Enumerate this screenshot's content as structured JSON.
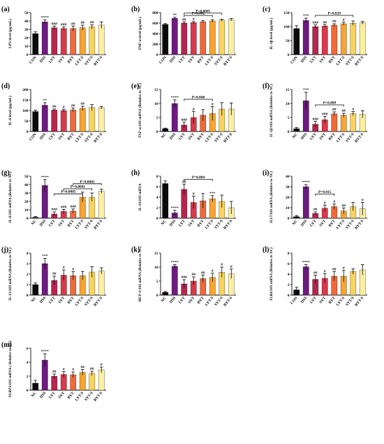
{
  "figure": {
    "palette": [
      "#0a0a0a",
      "#6d1a7e",
      "#b5264f",
      "#d9394c",
      "#ef6a3b",
      "#f6a532",
      "#f8d35e",
      "#fcefa0"
    ]
  },
  "chart_data": [
    {
      "id": "a",
      "type": "bar",
      "title": "(a)",
      "ylabel": "LPS level (pg/mL)",
      "categories": [
        "CON",
        "DSS",
        "LYT",
        "SYT",
        "BYT",
        "LYT-S",
        "SYT-S",
        "BYT-S"
      ],
      "values": [
        25,
        39,
        32,
        31,
        31,
        32,
        33,
        35
      ],
      "errors": [
        2,
        2.5,
        2,
        2,
        3,
        3,
        2.5,
        4
      ],
      "ylim": [
        0,
        50
      ],
      "yticks": [
        0,
        10,
        20,
        30,
        40,
        50
      ],
      "labels": [
        "",
        "****",
        "###",
        "###",
        "##",
        "##",
        "##",
        ""
      ],
      "brackets": []
    },
    {
      "id": "b",
      "type": "bar",
      "title": "(b)",
      "ylabel": "TNF-α level (pg/mL)",
      "categories": [
        "CON",
        "DSS",
        "LYT",
        "SYT",
        "BYT",
        "LYT-S",
        "SYT-S",
        "BYT-S"
      ],
      "values": [
        575,
        690,
        600,
        610,
        625,
        640,
        655,
        665
      ],
      "errors": [
        15,
        20,
        25,
        20,
        20,
        25,
        20,
        20
      ],
      "ylim": [
        0,
        800
      ],
      "yticks": [
        0,
        200,
        400,
        600,
        800
      ],
      "labels": [
        "",
        "**",
        "##",
        "#",
        "",
        "",
        "",
        ""
      ],
      "brackets": [
        {
          "from": 2,
          "to": 6,
          "level": 790,
          "text": "P=0.0005"
        },
        {
          "from": 2,
          "to": 5,
          "level": 745,
          "text": "P=0.002"
        }
      ]
    },
    {
      "id": "c",
      "type": "bar",
      "title": "(c)",
      "ylabel": "IL-1β level (pg/mL)",
      "categories": [
        "CON",
        "DSS",
        "LYT",
        "SYT",
        "BYT",
        "LYT-S",
        "SYT-S",
        "BYT-S"
      ],
      "values": [
        93,
        122,
        100,
        102,
        105,
        110,
        112,
        113
      ],
      "errors": [
        10,
        8,
        6,
        5,
        5,
        6,
        8,
        5
      ],
      "ylim": [
        0,
        150
      ],
      "yticks": [
        0,
        50,
        100,
        150
      ],
      "labels": [
        "",
        "***",
        "###",
        "##",
        "##",
        "#",
        "",
        ""
      ],
      "brackets": [
        {
          "from": 2,
          "to": 6,
          "level": 140,
          "text": "P=0.029"
        }
      ]
    },
    {
      "id": "d",
      "type": "bar",
      "title": "(d)",
      "ylabel": "IL-6 level (pg/mL)",
      "categories": [
        "CON",
        "DSS",
        "LYT",
        "SYT",
        "BYT",
        "LYT-S",
        "SYT-S",
        "BYT-S"
      ],
      "values": [
        95,
        125,
        102,
        100,
        103,
        110,
        114,
        113
      ],
      "errors": [
        7,
        12,
        5,
        6,
        9,
        10,
        14,
        6
      ],
      "ylim": [
        0,
        200
      ],
      "yticks": [
        0,
        50,
        100,
        150,
        200
      ],
      "labels": [
        "",
        "**",
        "##",
        "#",
        "##",
        "##",
        "",
        ""
      ],
      "brackets": []
    },
    {
      "id": "e",
      "type": "bar",
      "title": "(e)",
      "ylabel": "TNF-α/18S mRNA (Relative to NC)",
      "categories": [
        "NC",
        "DSS",
        "LYT",
        "SYT",
        "BYT",
        "LYT-S",
        "SYT-S",
        "BYT-S"
      ],
      "values": [
        1,
        10,
        2.3,
        5,
        5.8,
        6.4,
        8,
        8
      ],
      "errors": [
        0.2,
        1.3,
        1.0,
        2.2,
        2.0,
        2.5,
        2.3,
        2.2
      ],
      "ylim": [
        0,
        15
      ],
      "yticks": [
        0,
        5,
        10,
        15
      ],
      "labels": [
        "",
        "****",
        "###",
        "#",
        "",
        "#",
        "",
        ""
      ],
      "brackets": [
        {
          "from": 2,
          "to": 5,
          "level": 11.5,
          "text": "P=0.048"
        }
      ]
    },
    {
      "id": "f",
      "type": "bar",
      "title": "(f)",
      "ylabel": "IL-1β/18S mRNA (Relative to NC)",
      "categories": [
        "NC",
        "DSS",
        "LYT",
        "SYT",
        "BYT",
        "LYT-S",
        "SYT-S",
        "BYT-S"
      ],
      "values": [
        1,
        11,
        2.6,
        4.2,
        6.3,
        5.8,
        6.4,
        6.1
      ],
      "errors": [
        0.4,
        3,
        1.0,
        1.2,
        0.7,
        0.7,
        0.7,
        1.3
      ],
      "ylim": [
        0,
        15
      ],
      "yticks": [
        0,
        5,
        10,
        15
      ],
      "labels": [
        "",
        "***",
        "###",
        "###",
        "##",
        "##",
        "#",
        ""
      ],
      "brackets": [
        {
          "from": 2,
          "to": 5,
          "level": 9.5,
          "text": "P=0.009"
        }
      ]
    },
    {
      "id": "g",
      "type": "bar",
      "title": "(g)",
      "ylabel": "IL-6/18S mRNA (Relative to NC)",
      "categories": [
        "NC",
        "DSS",
        "LYT",
        "SYT",
        "BYT",
        "LYT-S",
        "SYT-S",
        "BYT-S"
      ],
      "values": [
        1,
        39,
        5,
        8,
        8.5,
        25,
        25,
        32
      ],
      "errors": [
        1,
        7,
        2.5,
        2.5,
        2.5,
        6,
        5,
        2.5
      ],
      "ylim": [
        0,
        50
      ],
      "yticks": [
        0,
        10,
        20,
        30,
        40,
        50
      ],
      "labels": [
        "",
        "****",
        "###",
        "###",
        "###",
        "",
        "",
        ""
      ],
      "brackets": [
        {
          "from": 4,
          "to": 7,
          "level": 41,
          "text": "P<0.0001"
        },
        {
          "from": 3,
          "to": 6,
          "level": 35,
          "text": "P<0.0001"
        },
        {
          "from": 2,
          "to": 5,
          "level": 29,
          "text": "P=0.0005"
        }
      ]
    },
    {
      "id": "h",
      "type": "bar",
      "title": "(h)",
      "ylabel": "IL-10/18S mRNA",
      "categories": [
        "NC",
        "DSS",
        "LYT",
        "SYT",
        "BYT",
        "LYT-S",
        "SYT-S",
        "BYT-S"
      ],
      "values": [
        6.6,
        1,
        5.5,
        3,
        3.3,
        3.7,
        3.2,
        2
      ],
      "errors": [
        0.5,
        0.5,
        1,
        1.2,
        1.4,
        0.6,
        1.2,
        1.2
      ],
      "ylim": [
        0,
        8
      ],
      "yticks": [
        0,
        2,
        4,
        6,
        8
      ],
      "labels": [
        "",
        "****",
        "##",
        "#",
        "",
        "***",
        "",
        ""
      ],
      "brackets": [
        {
          "from": 2,
          "to": 5,
          "level": 7.4,
          "text": "P=0.004"
        }
      ]
    },
    {
      "id": "i",
      "type": "bar",
      "title": "(i)",
      "ylabel": "IL17/18S mRNA (Relative to NC)",
      "categories": [
        "NC",
        "DSS",
        "LYT",
        "SYT",
        "BYT",
        "LYT-S",
        "SYT-S",
        "BYT-S"
      ],
      "values": [
        1.5,
        30,
        4.5,
        9.5,
        11,
        6.8,
        11,
        9
      ],
      "errors": [
        1,
        2,
        1.5,
        3,
        2.5,
        3,
        4,
        6
      ],
      "ylim": [
        0,
        40
      ],
      "yticks": [
        0,
        10,
        20,
        30,
        40
      ],
      "labels": [
        "",
        "****",
        "##",
        "#",
        "#",
        "##",
        "",
        "#"
      ],
      "brackets": [
        {
          "from": 2,
          "to": 4,
          "level": 23,
          "text": "P=0.015"
        }
      ]
    },
    {
      "id": "j",
      "type": "bar",
      "title": "(j)",
      "ylabel": "IL-13/18S mRNA (Relative to NC)",
      "categories": [
        "NC",
        "DSS",
        "LYT",
        "SYT",
        "BYT",
        "LYT-S",
        "SYT-S",
        "BYT-S"
      ],
      "values": [
        1,
        3,
        1.4,
        1.9,
        1.85,
        1.85,
        2.2,
        2.3
      ],
      "errors": [
        0.15,
        0.5,
        0.4,
        0.5,
        0.4,
        0.4,
        0.5,
        0.3
      ],
      "ylim": [
        0,
        4
      ],
      "yticks": [
        0,
        1,
        2,
        3,
        4
      ],
      "labels": [
        "",
        "***",
        "##",
        "#",
        "#",
        "",
        "",
        ""
      ],
      "brackets": []
    },
    {
      "id": "k",
      "type": "bar",
      "title": "(k)",
      "ylabel": "MCP-1/18S mRNA (Relative to NC)",
      "categories": [
        "NC",
        "DSS",
        "LYT",
        "SYT",
        "BYT",
        "LYT-S",
        "SYT-S",
        "BYT-S"
      ],
      "values": [
        1,
        10.3,
        4,
        5,
        5.9,
        6.3,
        8.2,
        7.6
      ],
      "errors": [
        0.3,
        0.6,
        1.5,
        1.5,
        1.3,
        1.5,
        1.8,
        1.7
      ],
      "ylim": [
        0,
        15
      ],
      "yticks": [
        0,
        5,
        10,
        15
      ],
      "labels": [
        "",
        "****",
        "###",
        "##",
        "##",
        "#",
        "#",
        "#"
      ],
      "brackets": []
    },
    {
      "id": "l",
      "type": "bar",
      "title": "(l)",
      "ylabel": "TLR4/18S mRNA (Relative to NC)",
      "categories": [
        "CON",
        "DSS",
        "LYT",
        "SYT",
        "BYT",
        "LYT-S",
        "SYT-S",
        "BYT-S"
      ],
      "values": [
        1,
        5.4,
        3,
        3.2,
        3.6,
        3.6,
        4.5,
        4.8
      ],
      "errors": [
        0.5,
        0.4,
        0.8,
        0.9,
        0.9,
        1.1,
        0.5,
        1
      ],
      "ylim": [
        0,
        8
      ],
      "yticks": [
        0,
        2,
        4,
        6,
        8
      ],
      "labels": [
        "",
        "****",
        "##",
        "#",
        "##",
        "#",
        "",
        ""
      ],
      "brackets": []
    },
    {
      "id": "m",
      "type": "bar",
      "title": "(m)",
      "ylabel": "NLRP3/18S mRNA ( Relative to NC)",
      "categories": [
        "NC",
        "DSS",
        "LYT",
        "SYT",
        "BYT",
        "LYT-S",
        "SYT-S",
        "BYT-S"
      ],
      "values": [
        1,
        4.3,
        2,
        2.25,
        2.2,
        2.55,
        2.4,
        2.9
      ],
      "errors": [
        0.4,
        0.9,
        0.3,
        0.4,
        0.4,
        0.4,
        0.3,
        0.4
      ],
      "ylim": [
        0,
        6
      ],
      "yticks": [
        0,
        2,
        4,
        6
      ],
      "labels": [
        "",
        "****",
        "##",
        "#",
        "#",
        "##",
        "##",
        "#"
      ],
      "brackets": []
    }
  ]
}
